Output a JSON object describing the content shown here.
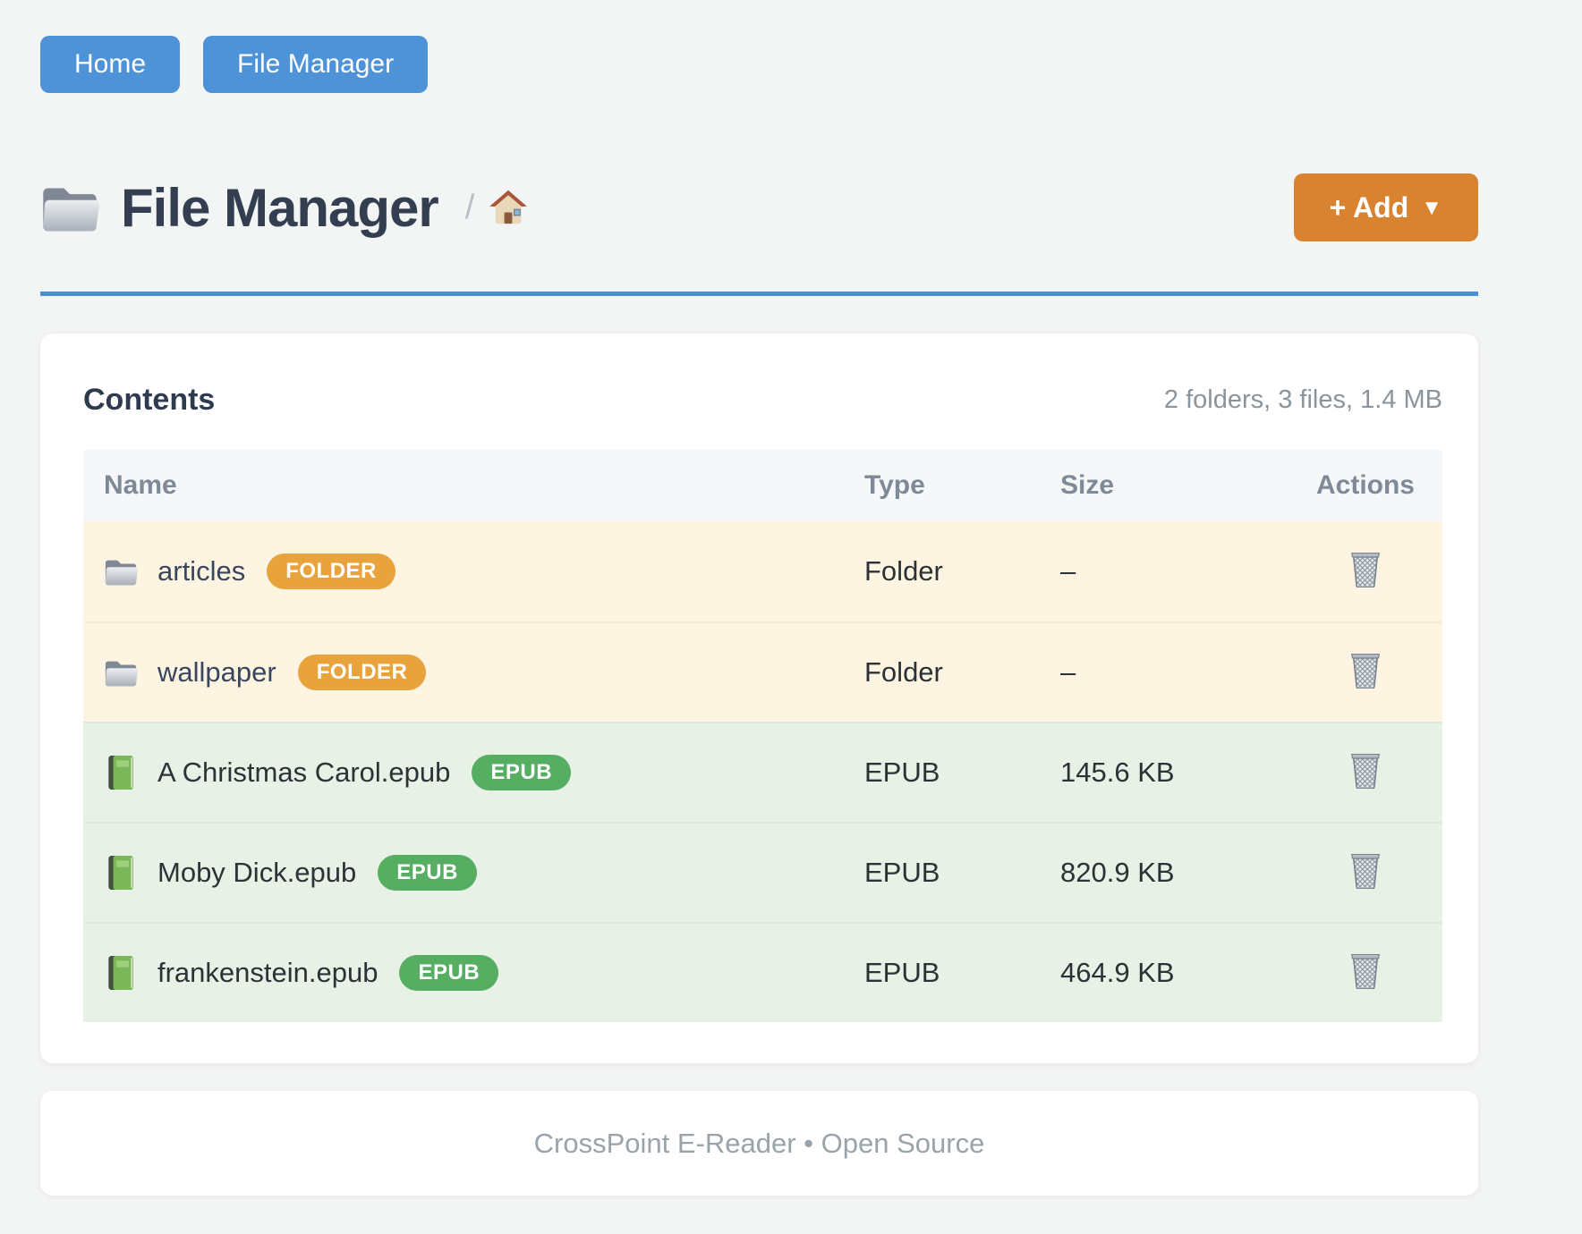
{
  "nav": {
    "buttons": [
      {
        "label": "Home"
      },
      {
        "label": "File Manager"
      }
    ]
  },
  "header": {
    "title": "File Manager",
    "title_icon": "folder-icon",
    "breadcrumb_separator": "/",
    "breadcrumb_home_icon": "house-icon",
    "add_button": {
      "label": "+ Add",
      "caret": "▼"
    }
  },
  "contents": {
    "heading": "Contents",
    "summary": "2 folders, 3 files, 1.4 MB",
    "table": {
      "columns": [
        "Name",
        "Type",
        "Size",
        "Actions"
      ],
      "rows": [
        {
          "icon": "folder-icon",
          "name": "articles",
          "badge": "FOLDER",
          "type": "Folder",
          "size": "–",
          "kind": "folder",
          "action_icon": "trash-icon"
        },
        {
          "icon": "folder-icon",
          "name": "wallpaper",
          "badge": "FOLDER",
          "type": "Folder",
          "size": "–",
          "kind": "folder",
          "action_icon": "trash-icon"
        },
        {
          "icon": "book-icon",
          "name": "A Christmas Carol.epub",
          "badge": "EPUB",
          "type": "EPUB",
          "size": "145.6 KB",
          "kind": "epub",
          "action_icon": "trash-icon"
        },
        {
          "icon": "book-icon",
          "name": "Moby Dick.epub",
          "badge": "EPUB",
          "type": "EPUB",
          "size": "820.9 KB",
          "kind": "epub",
          "action_icon": "trash-icon"
        },
        {
          "icon": "book-icon",
          "name": "frankenstein.epub",
          "badge": "EPUB",
          "type": "EPUB",
          "size": "464.9 KB",
          "kind": "epub",
          "action_icon": "trash-icon"
        }
      ]
    }
  },
  "footer": {
    "text": "CrossPoint E-Reader • Open Source"
  },
  "colors": {
    "accent_blue": "#4e93d8",
    "divider_blue": "#4a90d8",
    "add_orange": "#d9822f",
    "folder_badge": "#e9a33c",
    "epub_badge": "#55ae62",
    "folder_row_bg": "#fdf5e1",
    "epub_row_bg": "#e7f1e6"
  }
}
